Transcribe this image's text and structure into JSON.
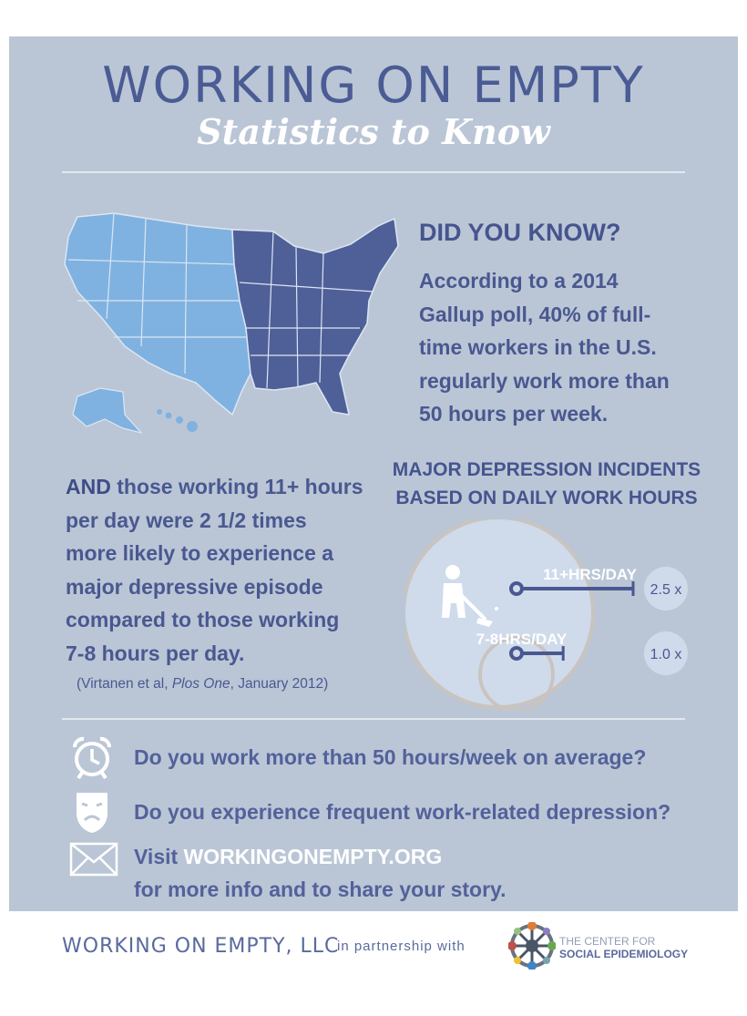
{
  "header": {
    "title": "WORKING ON EMPTY",
    "subtitle": "Statistics to Know"
  },
  "did_you_know": {
    "heading": "DID YOU KNOW?",
    "lines": [
      "According to a 2014",
      "Gallup poll, 40% of full-",
      "time workers in the U.S.",
      "regularly work more than",
      "50 hours per week."
    ]
  },
  "and_statement": {
    "lead": "AND",
    "lines_first": " those working 11+ hours",
    "lines": [
      "per day were 2 1/2 times",
      "more likely to experience a",
      "major depressive episode",
      "compared to those working",
      "7-8 hours per day."
    ]
  },
  "citation": {
    "prefix": "(Virtanen et al, ",
    "journal": "Plos One",
    "suffix": ", January 2012)"
  },
  "chart_data": {
    "type": "bar",
    "title_line1": "MAJOR DEPRESSION INCIDENTS",
    "title_line2": "BASED ON DAILY WORK HOURS",
    "categories": [
      "11+HRS/DAY",
      "7-8HRS/DAY"
    ],
    "values": [
      2.5,
      1.0
    ],
    "value_labels": [
      "2.5 x",
      "1.0 x"
    ],
    "colors": {
      "bar": "#4a5890",
      "bubble": "#cfdbeb"
    }
  },
  "questions": [
    {
      "icon": "alarm-clock-icon",
      "text": "Do you work more than 50 hours/week on average?"
    },
    {
      "icon": "theater-masks-icon",
      "text": "Do you experience frequent work-related depression?"
    }
  ],
  "visit": {
    "prefix": "Visit ",
    "url": "WORKINGONEMPTY.ORG",
    "line2": "for more info and to share your story."
  },
  "footer": {
    "company": "WORKING ON EMPTY, LLC",
    "partnership": "in partnership with",
    "partner_line1": "THE CENTER FOR",
    "partner_line2": "SOCIAL EPIDEMIOLOGY"
  },
  "colors": {
    "background": "#bac6d6",
    "navy": "#4a5890",
    "map_west": "#7fb2e0",
    "map_east": "#4f5f98"
  }
}
